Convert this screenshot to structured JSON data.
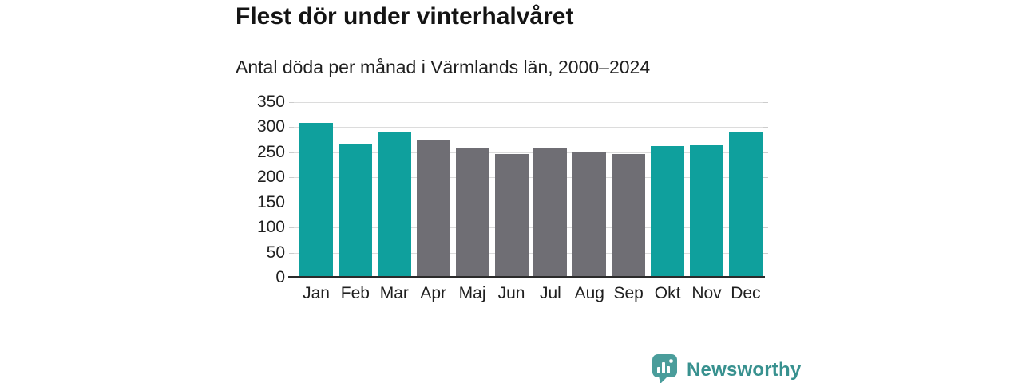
{
  "header": {
    "title": "Flest dör under vinterhalvåret",
    "subtitle": "Antal döda per månad i Värmlands län, 2000–2024"
  },
  "chart_data": {
    "type": "bar",
    "title": "Flest dör under vinterhalvåret",
    "subtitle": "Antal döda per månad i Värmlands län, 2000–2024",
    "categories": [
      "Jan",
      "Feb",
      "Mar",
      "Apr",
      "Maj",
      "Jun",
      "Jul",
      "Aug",
      "Sep",
      "Okt",
      "Nov",
      "Dec"
    ],
    "values": [
      308,
      266,
      290,
      275,
      258,
      247,
      258,
      250,
      246,
      262,
      264,
      289
    ],
    "bar_colors": [
      "#0FA09D",
      "#0FA09D",
      "#0FA09D",
      "#6F6E74",
      "#6F6E74",
      "#6F6E74",
      "#6F6E74",
      "#6F6E74",
      "#6F6E74",
      "#0FA09D",
      "#0FA09D",
      "#0FA09D"
    ],
    "accent_color": "#0FA09D",
    "neutral_color": "#6F6E74",
    "xlabel": "",
    "ylabel": "",
    "ylim": [
      0,
      350
    ],
    "yticks": [
      0,
      50,
      100,
      150,
      200,
      250,
      300,
      350
    ],
    "grid": true,
    "legend": false
  },
  "footer": {
    "brand": "Newsworthy",
    "brand_color": "#38918F",
    "logo_icon": "bar-chart-speech-bubble-icon"
  }
}
